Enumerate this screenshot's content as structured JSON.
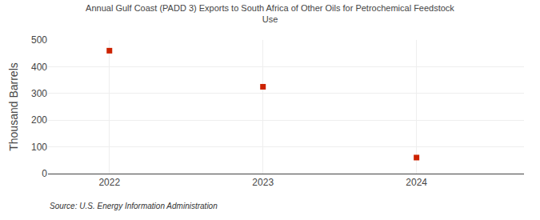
{
  "chart_data": {
    "type": "scatter",
    "title": "Annual Gulf Coast (PADD 3) Exports to South Africa of Other Oils for Petrochemical Feedstock\nUse",
    "x": [
      2022,
      2023,
      2024
    ],
    "values": [
      460,
      325,
      60
    ],
    "ylabel": "Thousand Barrels",
    "annotations": [
      "Source: U.S. Energy Information Administration"
    ],
    "color": "#cc2200",
    "marker": "square",
    "xlim": [
      2021.6,
      2024.7
    ],
    "xticks": [
      2022,
      2023,
      2024
    ],
    "ylim": [
      0,
      500
    ],
    "yticks": [
      0,
      100,
      200,
      300,
      400,
      500
    ],
    "grid": true
  }
}
